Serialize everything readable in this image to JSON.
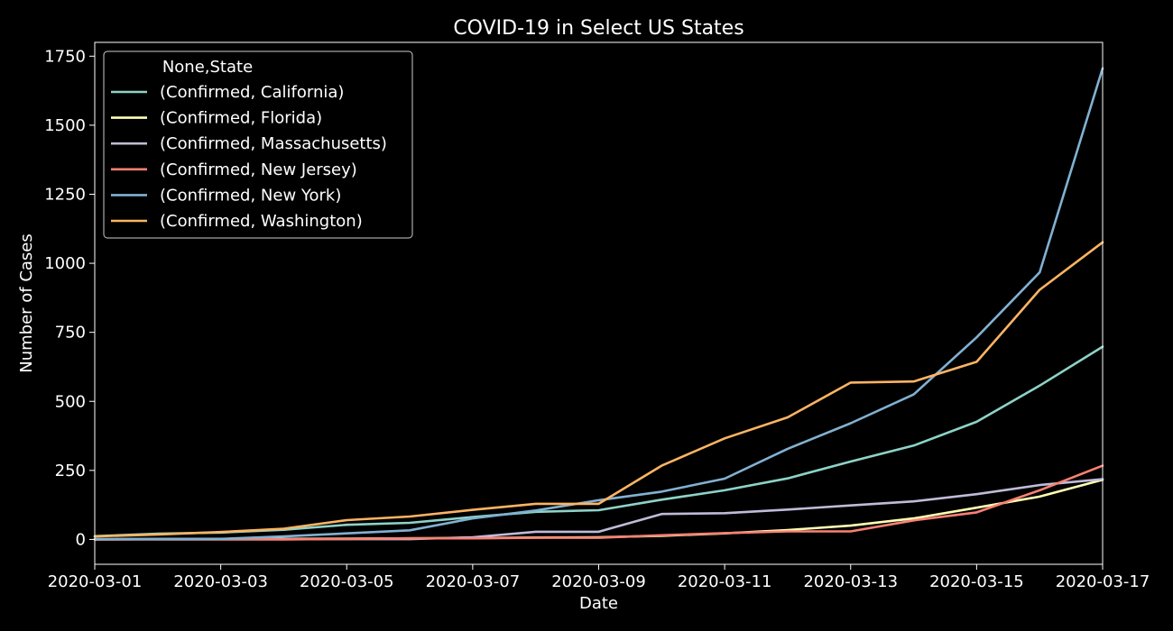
{
  "chart_data": {
    "type": "line",
    "title": "COVID-19 in Select US States",
    "xlabel": "Date",
    "ylabel": "Number of Cases",
    "x": [
      "2020-03-01",
      "2020-03-02",
      "2020-03-03",
      "2020-03-04",
      "2020-03-05",
      "2020-03-06",
      "2020-03-07",
      "2020-03-08",
      "2020-03-09",
      "2020-03-10",
      "2020-03-11",
      "2020-03-12",
      "2020-03-13",
      "2020-03-14",
      "2020-03-15",
      "2020-03-16",
      "2020-03-17"
    ],
    "x_ticks": [
      "2020-03-01",
      "2020-03-03",
      "2020-03-05",
      "2020-03-07",
      "2020-03-09",
      "2020-03-11",
      "2020-03-13",
      "2020-03-15",
      "2020-03-17"
    ],
    "xlim": [
      "2020-03-01",
      "2020-03-17"
    ],
    "ylim": [
      -90,
      1800
    ],
    "y_ticks": [
      0,
      250,
      500,
      750,
      1000,
      1250,
      1500,
      1750
    ],
    "grid": false,
    "background": "#000000",
    "legend": {
      "title": "None,State",
      "placement": "top-left"
    },
    "series": [
      {
        "name": "(Confirmed, California)",
        "color": "#8dd3c7",
        "values": [
          12,
          21,
          25,
          35,
          53,
          60,
          81,
          100,
          106,
          144,
          178,
          221,
          282,
          340,
          426,
          557,
          698
        ]
      },
      {
        "name": "(Confirmed, Florida)",
        "color": "#feffb3",
        "values": [
          0,
          1,
          2,
          2,
          3,
          4,
          5,
          7,
          8,
          13,
          22,
          34,
          50,
          76,
          115,
          155,
          216
        ]
      },
      {
        "name": "(Confirmed, Massachusetts)",
        "color": "#bfbbd9",
        "values": [
          1,
          1,
          1,
          1,
          1,
          1,
          8,
          28,
          28,
          92,
          95,
          108,
          123,
          138,
          164,
          197,
          218
        ]
      },
      {
        "name": "(Confirmed, New Jersey)",
        "color": "#fa8174",
        "values": [
          0,
          0,
          0,
          0,
          2,
          4,
          4,
          6,
          6,
          15,
          23,
          29,
          29,
          69,
          98,
          178,
          267
        ]
      },
      {
        "name": "(Confirmed, New York)",
        "color": "#81b1d2",
        "values": [
          1,
          1,
          2,
          11,
          22,
          33,
          76,
          105,
          142,
          173,
          220,
          328,
          421,
          525,
          732,
          967,
          1706
        ]
      },
      {
        "name": "(Confirmed, Washington)",
        "color": "#fdb462",
        "values": [
          11,
          18,
          27,
          39,
          70,
          83,
          107,
          129,
          129,
          267,
          366,
          442,
          568,
          572,
          643,
          904,
          1076
        ]
      }
    ]
  }
}
